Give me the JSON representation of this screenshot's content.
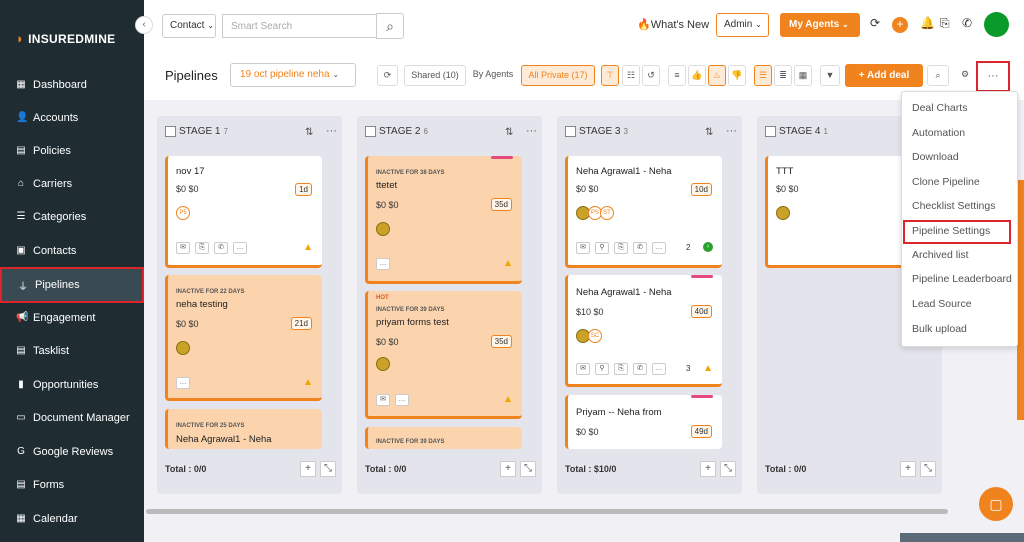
{
  "brand": {
    "name": "INSUREDMINE"
  },
  "sidebar": {
    "items": [
      {
        "label": "Dashboard",
        "icon": "dashboard-icon"
      },
      {
        "label": "Accounts",
        "icon": "accounts-icon"
      },
      {
        "label": "Policies",
        "icon": "policies-icon"
      },
      {
        "label": "Carriers",
        "icon": "carriers-icon"
      },
      {
        "label": "Categories",
        "icon": "categories-icon"
      },
      {
        "label": "Contacts",
        "icon": "contacts-icon"
      },
      {
        "label": "Pipelines",
        "icon": "pipelines-icon",
        "active": true
      },
      {
        "label": "Engagement",
        "icon": "engagement-icon"
      },
      {
        "label": "Tasklist",
        "icon": "tasklist-icon"
      },
      {
        "label": "Opportunities",
        "icon": "opportunities-icon"
      },
      {
        "label": "Document Manager",
        "icon": "folder-icon"
      },
      {
        "label": "Google Reviews",
        "icon": "google-icon"
      },
      {
        "label": "Forms",
        "icon": "forms-icon"
      },
      {
        "label": "Calendar",
        "icon": "calendar-icon"
      }
    ]
  },
  "topbar": {
    "search_type": "Contact",
    "search_placeholder": "Smart Search",
    "whats_new": "What's New",
    "role": "Admin",
    "my_agents": "My Agents"
  },
  "toolbar": {
    "title": "Pipelines",
    "pipeline": "19 oct pipeline neha",
    "shared": "Shared (10)",
    "by_agents": "By Agents",
    "all_private": "All Private (17)",
    "add_deal": "+ Add deal",
    "more": "···"
  },
  "columns": [
    {
      "name": "STAGE 1",
      "count": "7",
      "total": "Total : 0/0",
      "cards": [
        {
          "tag": "",
          "title": "nov 17",
          "money": "$0 $0",
          "days": "1d",
          "avatar": "P5"
        },
        {
          "tag": "INACTIVE FOR 22 DAYS",
          "title": "neha testing",
          "money": "$0 $0",
          "days": "21d"
        },
        {
          "tag": "INACTIVE FOR 25 DAYS",
          "title": "Neha Agrawal1 - Neha"
        }
      ]
    },
    {
      "name": "STAGE 2",
      "count": "6",
      "total": "Total : 0/0",
      "cards": [
        {
          "tag": "INACTIVE FOR 38 DAYS",
          "title": "ttetet",
          "money": "$0 $0",
          "days": "35d"
        },
        {
          "tag": "HOT",
          "title": "priyam forms test",
          "tag2": "INACTIVE FOR 39 DAYS",
          "money": "$0 $0",
          "days": "35d"
        },
        {
          "tag": "INACTIVE FOR 39 DAYS"
        }
      ]
    },
    {
      "name": "STAGE 3",
      "count": "3",
      "total": "Total : $10/0",
      "cards": [
        {
          "title": "Neha Agrawal1 - Neha",
          "money": "$0 $0",
          "days": "10d",
          "av1": "PS",
          "av2": "ST",
          "count": "2"
        },
        {
          "title": "Neha Agrawal1 - Neha",
          "money": "$10 $0",
          "days": "40d",
          "av1": "SC",
          "count": "3"
        },
        {
          "title": "Priyam -- Neha from",
          "money": "$0 $0",
          "days": "49d"
        }
      ]
    },
    {
      "name": "STAGE 4",
      "count": "1",
      "total": "Total : 0/0",
      "cards": [
        {
          "title": "TTT",
          "money": "$0 $0"
        }
      ]
    }
  ],
  "dropdown": [
    "Deal Charts",
    "Automation",
    "Download",
    "Clone Pipeline",
    "Checklist Settings",
    "Pipeline Settings",
    "Archived list",
    "Pipeline Leaderboard",
    "Lead Source",
    "Bulk upload"
  ]
}
